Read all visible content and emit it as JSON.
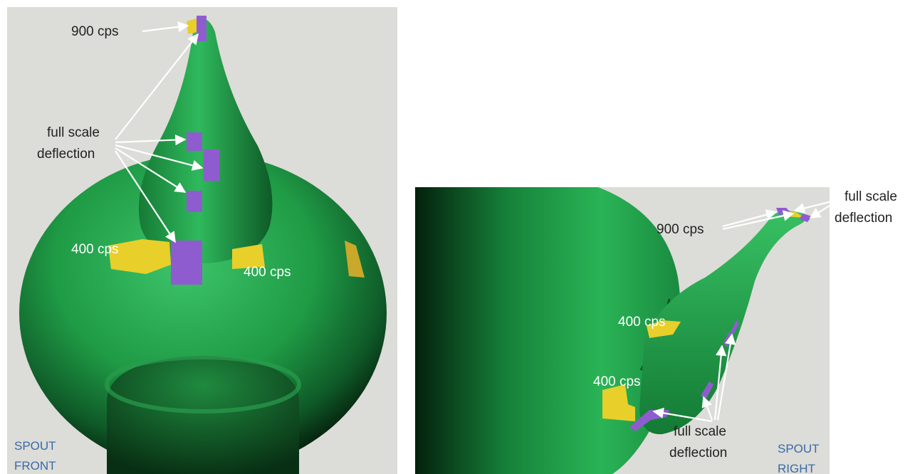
{
  "colors": {
    "background_panel": "#dcdcd8",
    "surface_green": "#1f9a45",
    "surface_highlight": "#3cc46a",
    "surface_shadow": "#06260f",
    "zone_yellow": "#e8cf2a",
    "zone_purple": "#8f5ccf",
    "label_white": "#ffffff",
    "label_dark": "#222222",
    "label_blue": "#3a6aa8"
  },
  "front_view": {
    "label_900": "900 cps",
    "label_full_scale_line1": "full scale",
    "label_full_scale_line2": "deflection",
    "label_400_left": "400 cps",
    "label_400_right": "400 cps",
    "caption_line1": "SPOUT",
    "caption_line2": "FRONT"
  },
  "right_view": {
    "label_900": "900 cps",
    "label_full_scale_top_line1": "full scale",
    "label_full_scale_top_line2": "deflection",
    "label_400_upper": "400 cps",
    "label_400_lower": "400 cps",
    "label_full_scale_bottom_line1": "full scale",
    "label_full_scale_bottom_line2": "deflection",
    "caption_line1": "SPOUT",
    "caption_line2": "RIGHT"
  }
}
